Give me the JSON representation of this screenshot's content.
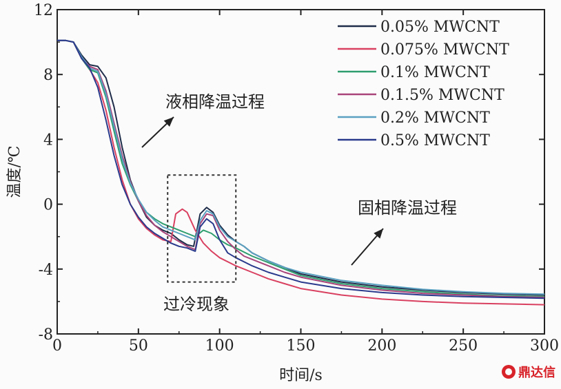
{
  "chart_data": {
    "type": "line",
    "xlabel": "时间/s",
    "ylabel": "温度/℃",
    "xlim": [
      0,
      300
    ],
    "ylim": [
      -8,
      12
    ],
    "xticks": [
      0,
      50,
      100,
      150,
      200,
      250,
      300
    ],
    "yticks": [
      -8,
      -4,
      0,
      4,
      8,
      12
    ],
    "grid": false,
    "legend_position": "top-right",
    "series": [
      {
        "name": "0.05% MWCNT",
        "color": "#1f2d4a",
        "points": [
          [
            0,
            10.1
          ],
          [
            5,
            10.1
          ],
          [
            10,
            10.0
          ],
          [
            15,
            9.2
          ],
          [
            20,
            8.6
          ],
          [
            25,
            8.5
          ],
          [
            30,
            7.8
          ],
          [
            35,
            6.0
          ],
          [
            40,
            3.5
          ],
          [
            45,
            1.5
          ],
          [
            50,
            0.2
          ],
          [
            55,
            -0.8
          ],
          [
            60,
            -1.3
          ],
          [
            65,
            -1.6
          ],
          [
            70,
            -1.8
          ],
          [
            75,
            -2.2
          ],
          [
            80,
            -2.5
          ],
          [
            84,
            -2.6
          ],
          [
            88,
            -0.6
          ],
          [
            92,
            -0.2
          ],
          [
            96,
            -0.5
          ],
          [
            100,
            -1.3
          ],
          [
            105,
            -1.9
          ],
          [
            110,
            -2.3
          ],
          [
            115,
            -2.6
          ],
          [
            120,
            -3.0
          ],
          [
            130,
            -3.5
          ],
          [
            140,
            -3.9
          ],
          [
            150,
            -4.3
          ],
          [
            175,
            -4.8
          ],
          [
            200,
            -5.1
          ],
          [
            225,
            -5.3
          ],
          [
            250,
            -5.45
          ],
          [
            275,
            -5.55
          ],
          [
            300,
            -5.6
          ]
        ]
      },
      {
        "name": "0.075% MWCNT",
        "color": "#d94060",
        "points": [
          [
            0,
            10.1
          ],
          [
            5,
            10.1
          ],
          [
            10,
            10.0
          ],
          [
            15,
            9.0
          ],
          [
            20,
            8.3
          ],
          [
            25,
            7.5
          ],
          [
            30,
            5.8
          ],
          [
            35,
            3.5
          ],
          [
            40,
            1.5
          ],
          [
            45,
            0.0
          ],
          [
            50,
            -0.9
          ],
          [
            55,
            -1.5
          ],
          [
            60,
            -1.9
          ],
          [
            65,
            -2.2
          ],
          [
            70,
            -2.3
          ],
          [
            73,
            -0.6
          ],
          [
            77,
            -0.3
          ],
          [
            80,
            -0.5
          ],
          [
            85,
            -1.6
          ],
          [
            90,
            -2.4
          ],
          [
            95,
            -2.9
          ],
          [
            100,
            -3.3
          ],
          [
            110,
            -3.8
          ],
          [
            120,
            -4.2
          ],
          [
            130,
            -4.6
          ],
          [
            140,
            -4.9
          ],
          [
            150,
            -5.2
          ],
          [
            175,
            -5.6
          ],
          [
            200,
            -5.85
          ],
          [
            225,
            -6.0
          ],
          [
            250,
            -6.1
          ],
          [
            275,
            -6.15
          ],
          [
            300,
            -6.2
          ]
        ]
      },
      {
        "name": "0.1% MWCNT",
        "color": "#2e9e6e",
        "points": [
          [
            0,
            10.1
          ],
          [
            5,
            10.1
          ],
          [
            10,
            10.0
          ],
          [
            15,
            9.0
          ],
          [
            20,
            8.3
          ],
          [
            25,
            8.1
          ],
          [
            30,
            6.6
          ],
          [
            35,
            4.5
          ],
          [
            40,
            2.5
          ],
          [
            45,
            1.2
          ],
          [
            50,
            0.2
          ],
          [
            55,
            -0.5
          ],
          [
            60,
            -0.9
          ],
          [
            65,
            -1.2
          ],
          [
            70,
            -1.4
          ],
          [
            75,
            -1.6
          ],
          [
            80,
            -1.8
          ],
          [
            85,
            -2.0
          ],
          [
            90,
            -1.6
          ],
          [
            95,
            -1.8
          ],
          [
            100,
            -2.2
          ],
          [
            105,
            -2.5
          ],
          [
            110,
            -2.7
          ],
          [
            120,
            -3.2
          ],
          [
            130,
            -3.6
          ],
          [
            140,
            -4.0
          ],
          [
            150,
            -4.4
          ],
          [
            175,
            -4.9
          ],
          [
            200,
            -5.2
          ],
          [
            225,
            -5.4
          ],
          [
            250,
            -5.55
          ],
          [
            275,
            -5.65
          ],
          [
            300,
            -5.7
          ]
        ]
      },
      {
        "name": "0.1.5% MWCNT",
        "color": "#a8447a",
        "points": [
          [
            0,
            10.1
          ],
          [
            5,
            10.1
          ],
          [
            10,
            10.0
          ],
          [
            15,
            9.0
          ],
          [
            20,
            8.5
          ],
          [
            25,
            8.3
          ],
          [
            30,
            7.0
          ],
          [
            35,
            5.0
          ],
          [
            40,
            3.0
          ],
          [
            45,
            1.4
          ],
          [
            50,
            0.2
          ],
          [
            55,
            -0.7
          ],
          [
            60,
            -1.3
          ],
          [
            65,
            -1.7
          ],
          [
            70,
            -2.0
          ],
          [
            75,
            -2.3
          ],
          [
            80,
            -2.6
          ],
          [
            85,
            -2.8
          ],
          [
            88,
            -1.2
          ],
          [
            92,
            -0.6
          ],
          [
            96,
            -0.7
          ],
          [
            100,
            -1.6
          ],
          [
            105,
            -2.3
          ],
          [
            110,
            -2.8
          ],
          [
            115,
            -3.2
          ],
          [
            120,
            -3.4
          ],
          [
            130,
            -3.8
          ],
          [
            140,
            -4.2
          ],
          [
            150,
            -4.5
          ],
          [
            175,
            -5.0
          ],
          [
            200,
            -5.3
          ],
          [
            225,
            -5.5
          ],
          [
            250,
            -5.6
          ],
          [
            275,
            -5.7
          ],
          [
            300,
            -5.75
          ]
        ]
      },
      {
        "name": "0.2% MWCNT",
        "color": "#5aa0c0",
        "points": [
          [
            0,
            10.1
          ],
          [
            5,
            10.1
          ],
          [
            10,
            10.0
          ],
          [
            15,
            9.1
          ],
          [
            20,
            8.4
          ],
          [
            25,
            8.2
          ],
          [
            30,
            6.8
          ],
          [
            35,
            4.8
          ],
          [
            40,
            2.8
          ],
          [
            45,
            1.3
          ],
          [
            50,
            0.3
          ],
          [
            55,
            -0.5
          ],
          [
            60,
            -1.0
          ],
          [
            65,
            -1.4
          ],
          [
            70,
            -1.6
          ],
          [
            75,
            -1.8
          ],
          [
            80,
            -2.0
          ],
          [
            85,
            -2.2
          ],
          [
            88,
            -1.0
          ],
          [
            92,
            -0.4
          ],
          [
            96,
            -0.6
          ],
          [
            100,
            -1.4
          ],
          [
            105,
            -2.0
          ],
          [
            110,
            -2.3
          ],
          [
            115,
            -2.6
          ],
          [
            120,
            -3.0
          ],
          [
            130,
            -3.5
          ],
          [
            140,
            -3.9
          ],
          [
            150,
            -4.2
          ],
          [
            175,
            -4.7
          ],
          [
            200,
            -5.0
          ],
          [
            225,
            -5.25
          ],
          [
            250,
            -5.4
          ],
          [
            275,
            -5.5
          ],
          [
            300,
            -5.55
          ]
        ]
      },
      {
        "name": "0.5% MWCNT",
        "color": "#2a3a8c",
        "points": [
          [
            0,
            10.1
          ],
          [
            5,
            10.1
          ],
          [
            10,
            10.0
          ],
          [
            15,
            9.0
          ],
          [
            20,
            8.4
          ],
          [
            25,
            7.2
          ],
          [
            30,
            5.2
          ],
          [
            35,
            3.0
          ],
          [
            40,
            1.2
          ],
          [
            45,
            0.0
          ],
          [
            50,
            -0.8
          ],
          [
            55,
            -1.4
          ],
          [
            60,
            -1.8
          ],
          [
            65,
            -2.1
          ],
          [
            70,
            -2.4
          ],
          [
            75,
            -2.6
          ],
          [
            80,
            -2.7
          ],
          [
            85,
            -2.9
          ],
          [
            88,
            -1.4
          ],
          [
            92,
            -0.9
          ],
          [
            96,
            -1.2
          ],
          [
            100,
            -2.2
          ],
          [
            105,
            -3.0
          ],
          [
            110,
            -3.3
          ],
          [
            120,
            -3.8
          ],
          [
            130,
            -4.2
          ],
          [
            140,
            -4.5
          ],
          [
            150,
            -4.8
          ],
          [
            175,
            -5.2
          ],
          [
            200,
            -5.45
          ],
          [
            225,
            -5.6
          ],
          [
            250,
            -5.7
          ],
          [
            275,
            -5.75
          ],
          [
            300,
            -5.8
          ]
        ]
      }
    ],
    "annotations": [
      {
        "text": "液相降温过程"
      },
      {
        "text": "固相降温过程"
      },
      {
        "text": "过冷现象"
      }
    ]
  },
  "watermark": {
    "text": "鼎达信"
  }
}
